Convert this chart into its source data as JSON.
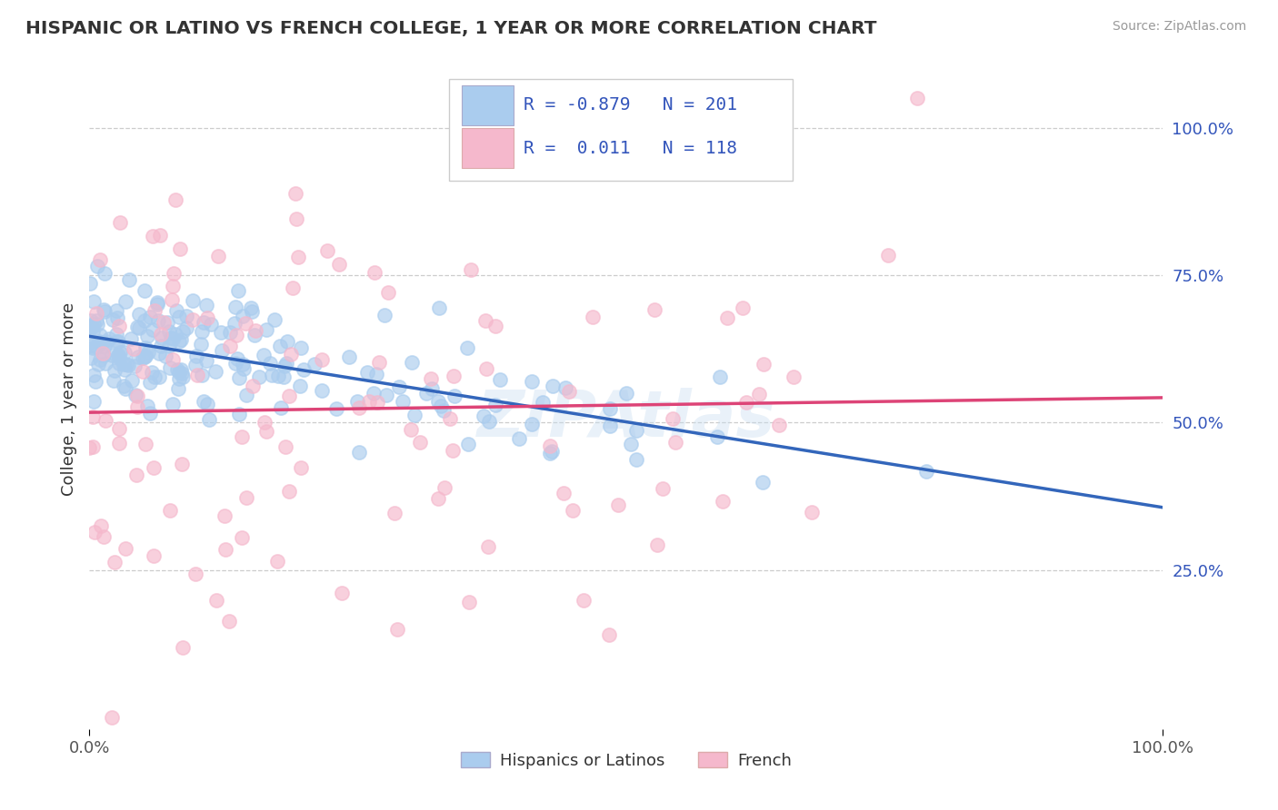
{
  "title": "HISPANIC OR LATINO VS FRENCH COLLEGE, 1 YEAR OR MORE CORRELATION CHART",
  "source": "Source: ZipAtlas.com",
  "ylabel": "College, 1 year or more",
  "y_tick_labels_right": [
    "25.0%",
    "50.0%",
    "75.0%",
    "100.0%"
  ],
  "blue_scatter_color": "#aaccee",
  "pink_scatter_color": "#f5b8cc",
  "blue_line_color": "#3366bb",
  "pink_line_color": "#dd4477",
  "background_color": "#ffffff",
  "grid_color": "#cccccc",
  "title_color": "#333333",
  "source_color": "#999999",
  "label_color": "#3355bb",
  "R_blue": -0.879,
  "N_blue": 201,
  "R_pink": 0.011,
  "N_pink": 118,
  "xlim": [
    0.0,
    1.0
  ],
  "watermark": "ZIPAtlas"
}
